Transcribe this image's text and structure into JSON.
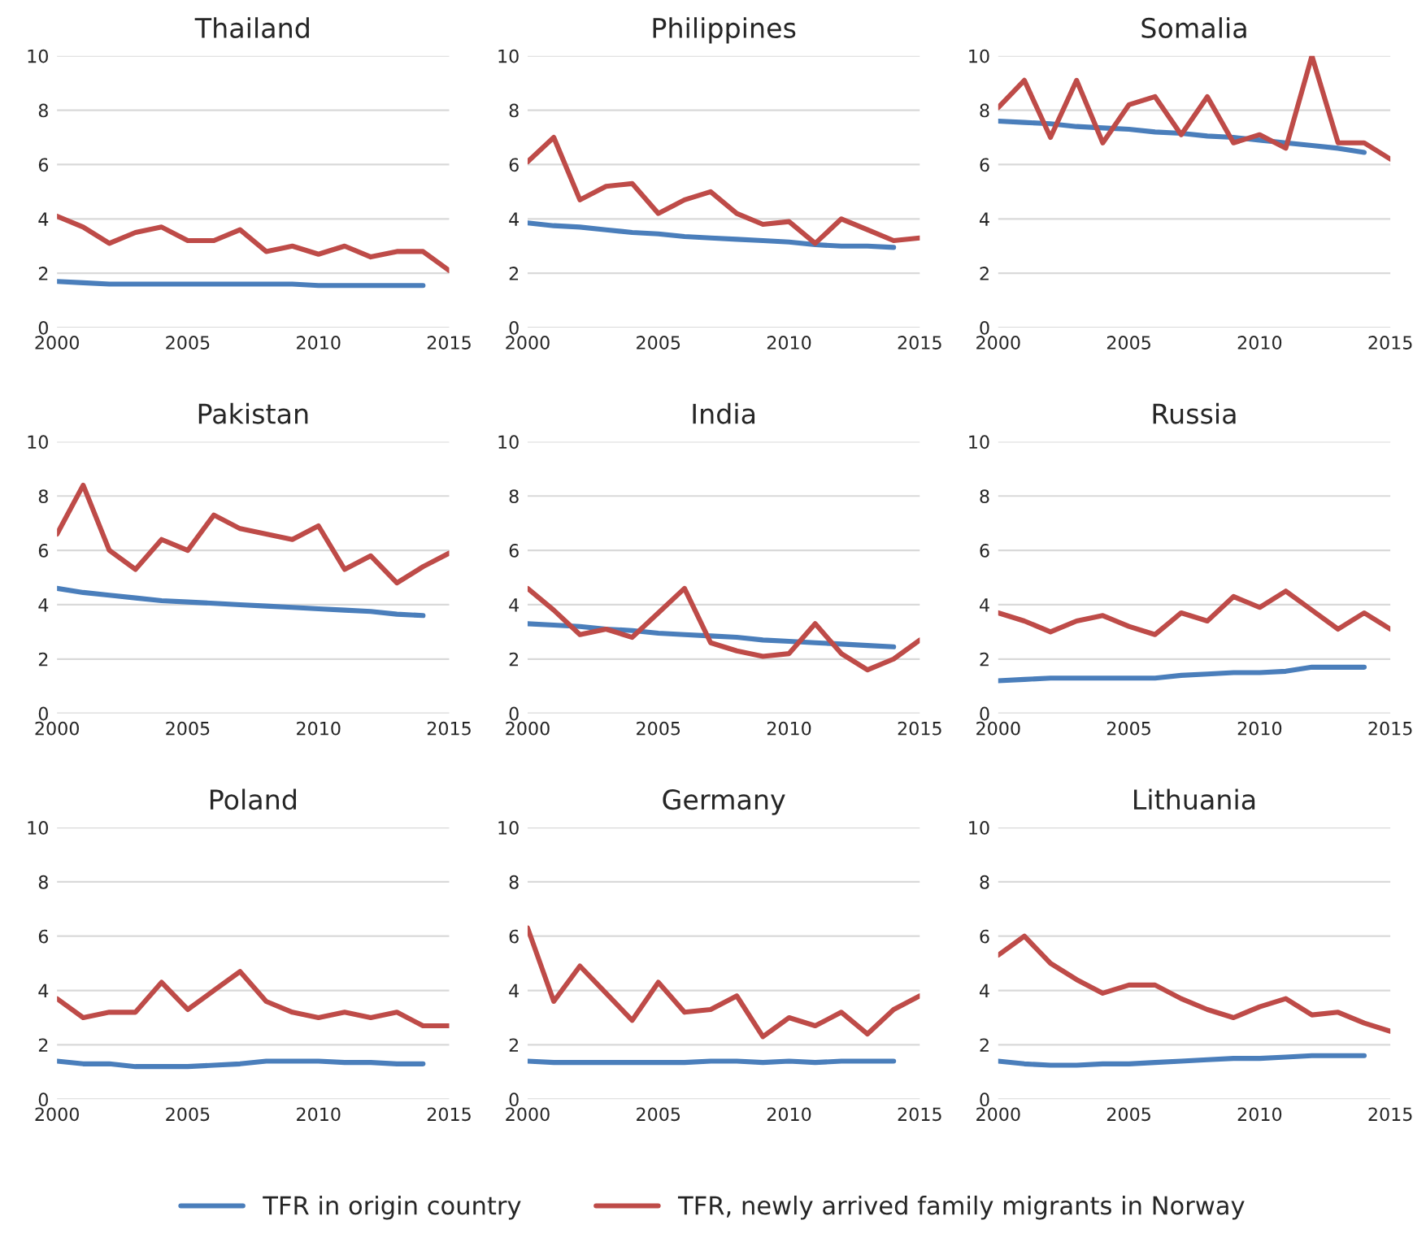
{
  "chart_data": [
    {
      "type": "line",
      "title": "Thailand",
      "x": [
        2000,
        2001,
        2002,
        2003,
        2004,
        2005,
        2006,
        2007,
        2008,
        2009,
        2010,
        2011,
        2012,
        2013,
        2014,
        2015
      ],
      "xlim": [
        2000,
        2015
      ],
      "xticks": [
        2000,
        2005,
        2010,
        2015
      ],
      "ylim": [
        0,
        10
      ],
      "yticks": [
        0,
        2,
        4,
        6,
        8,
        10
      ],
      "grid": "y",
      "legend": "bottom",
      "series": [
        {
          "name": "TFR in origin country",
          "color": "#4a7ebb",
          "values": [
            1.7,
            1.65,
            1.6,
            1.6,
            1.6,
            1.6,
            1.6,
            1.6,
            1.6,
            1.6,
            1.55,
            1.55,
            1.55,
            1.55,
            1.55,
            null
          ]
        },
        {
          "name": "TFR, newly arrived family migrants in Norway",
          "color": "#be4b48",
          "values": [
            4.1,
            3.7,
            3.1,
            3.5,
            3.7,
            3.2,
            3.2,
            3.6,
            2.8,
            3.0,
            2.7,
            3.0,
            2.6,
            2.8,
            2.8,
            2.1
          ]
        }
      ]
    },
    {
      "type": "line",
      "title": "Philippines",
      "x": [
        2000,
        2001,
        2002,
        2003,
        2004,
        2005,
        2006,
        2007,
        2008,
        2009,
        2010,
        2011,
        2012,
        2013,
        2014,
        2015
      ],
      "xlim": [
        2000,
        2015
      ],
      "xticks": [
        2000,
        2005,
        2010,
        2015
      ],
      "ylim": [
        0,
        10
      ],
      "yticks": [
        0,
        2,
        4,
        6,
        8,
        10
      ],
      "grid": "y",
      "series": [
        {
          "color": "#4a7ebb",
          "values": [
            3.85,
            3.75,
            3.7,
            3.6,
            3.5,
            3.45,
            3.35,
            3.3,
            3.25,
            3.2,
            3.15,
            3.05,
            3.0,
            3.0,
            2.95,
            null
          ]
        },
        {
          "color": "#be4b48",
          "values": [
            6.1,
            7.0,
            4.7,
            5.2,
            5.3,
            4.2,
            4.7,
            5.0,
            4.2,
            3.8,
            3.9,
            3.1,
            4.0,
            3.6,
            3.2,
            3.3
          ]
        }
      ]
    },
    {
      "type": "line",
      "title": "Somalia",
      "x": [
        2000,
        2001,
        2002,
        2003,
        2004,
        2005,
        2006,
        2007,
        2008,
        2009,
        2010,
        2011,
        2012,
        2013,
        2014,
        2015
      ],
      "xlim": [
        2000,
        2015
      ],
      "xticks": [
        2000,
        2005,
        2010,
        2015
      ],
      "ylim": [
        0,
        10
      ],
      "yticks": [
        0,
        2,
        4,
        6,
        8,
        10
      ],
      "grid": "y",
      "series": [
        {
          "color": "#4a7ebb",
          "values": [
            7.6,
            7.55,
            7.5,
            7.4,
            7.35,
            7.3,
            7.2,
            7.15,
            7.05,
            7.0,
            6.9,
            6.8,
            6.7,
            6.6,
            6.45,
            null
          ]
        },
        {
          "color": "#be4b48",
          "values": [
            8.1,
            9.1,
            7.0,
            9.1,
            6.8,
            8.2,
            8.5,
            7.1,
            8.5,
            6.8,
            7.1,
            6.6,
            10.0,
            6.8,
            6.8,
            6.2
          ]
        }
      ]
    },
    {
      "type": "line",
      "title": "Pakistan",
      "x": [
        2000,
        2001,
        2002,
        2003,
        2004,
        2005,
        2006,
        2007,
        2008,
        2009,
        2010,
        2011,
        2012,
        2013,
        2014,
        2015
      ],
      "xlim": [
        2000,
        2015
      ],
      "xticks": [
        2000,
        2005,
        2010,
        2015
      ],
      "ylim": [
        0,
        10
      ],
      "yticks": [
        0,
        2,
        4,
        6,
        8,
        10
      ],
      "grid": "y",
      "series": [
        {
          "color": "#4a7ebb",
          "values": [
            4.6,
            4.45,
            4.35,
            4.25,
            4.15,
            4.1,
            4.05,
            4.0,
            3.95,
            3.9,
            3.85,
            3.8,
            3.75,
            3.65,
            3.6,
            null
          ]
        },
        {
          "color": "#be4b48",
          "values": [
            6.6,
            8.4,
            6.0,
            5.3,
            6.4,
            6.0,
            7.3,
            6.8,
            6.6,
            6.4,
            6.9,
            5.3,
            5.8,
            4.8,
            5.4,
            5.9
          ]
        }
      ]
    },
    {
      "type": "line",
      "title": "India",
      "x": [
        2000,
        2001,
        2002,
        2003,
        2004,
        2005,
        2006,
        2007,
        2008,
        2009,
        2010,
        2011,
        2012,
        2013,
        2014,
        2015
      ],
      "xlim": [
        2000,
        2015
      ],
      "xticks": [
        2000,
        2005,
        2010,
        2015
      ],
      "ylim": [
        0,
        10
      ],
      "yticks": [
        0,
        2,
        4,
        6,
        8,
        10
      ],
      "grid": "y",
      "series": [
        {
          "color": "#4a7ebb",
          "values": [
            3.3,
            3.25,
            3.2,
            3.1,
            3.05,
            2.95,
            2.9,
            2.85,
            2.8,
            2.7,
            2.65,
            2.6,
            2.55,
            2.5,
            2.45,
            null
          ]
        },
        {
          "color": "#be4b48",
          "values": [
            4.6,
            3.8,
            2.9,
            3.1,
            2.8,
            3.7,
            4.6,
            2.6,
            2.3,
            2.1,
            2.2,
            3.3,
            2.2,
            1.6,
            2.0,
            2.7
          ]
        }
      ]
    },
    {
      "type": "line",
      "title": "Russia",
      "x": [
        2000,
        2001,
        2002,
        2003,
        2004,
        2005,
        2006,
        2007,
        2008,
        2009,
        2010,
        2011,
        2012,
        2013,
        2014,
        2015
      ],
      "xlim": [
        2000,
        2015
      ],
      "xticks": [
        2000,
        2005,
        2010,
        2015
      ],
      "ylim": [
        0,
        10
      ],
      "yticks": [
        0,
        2,
        4,
        6,
        8,
        10
      ],
      "grid": "y",
      "series": [
        {
          "color": "#4a7ebb",
          "values": [
            1.2,
            1.25,
            1.3,
            1.3,
            1.3,
            1.3,
            1.3,
            1.4,
            1.45,
            1.5,
            1.5,
            1.55,
            1.7,
            1.7,
            1.7,
            null
          ]
        },
        {
          "color": "#be4b48",
          "values": [
            3.7,
            3.4,
            3.0,
            3.4,
            3.6,
            3.2,
            2.9,
            3.7,
            3.4,
            4.3,
            3.9,
            4.5,
            3.8,
            3.1,
            3.7,
            3.1
          ]
        }
      ]
    },
    {
      "type": "line",
      "title": "Poland",
      "x": [
        2000,
        2001,
        2002,
        2003,
        2004,
        2005,
        2006,
        2007,
        2008,
        2009,
        2010,
        2011,
        2012,
        2013,
        2014,
        2015
      ],
      "xlim": [
        2000,
        2015
      ],
      "xticks": [
        2000,
        2005,
        2010,
        2015
      ],
      "ylim": [
        0,
        10
      ],
      "yticks": [
        0,
        2,
        4,
        6,
        8,
        10
      ],
      "grid": "y",
      "series": [
        {
          "color": "#4a7ebb",
          "values": [
            1.4,
            1.3,
            1.3,
            1.2,
            1.2,
            1.2,
            1.25,
            1.3,
            1.4,
            1.4,
            1.4,
            1.35,
            1.35,
            1.3,
            1.3,
            null
          ]
        },
        {
          "color": "#be4b48",
          "values": [
            3.7,
            3.0,
            3.2,
            3.2,
            4.3,
            3.3,
            4.0,
            4.7,
            3.6,
            3.2,
            3.0,
            3.2,
            3.0,
            3.2,
            2.7,
            2.7
          ]
        }
      ]
    },
    {
      "type": "line",
      "title": "Germany",
      "x": [
        2000,
        2001,
        2002,
        2003,
        2004,
        2005,
        2006,
        2007,
        2008,
        2009,
        2010,
        2011,
        2012,
        2013,
        2014,
        2015
      ],
      "xlim": [
        2000,
        2015
      ],
      "xticks": [
        2000,
        2005,
        2010,
        2015
      ],
      "ylim": [
        0,
        10
      ],
      "yticks": [
        0,
        2,
        4,
        6,
        8,
        10
      ],
      "grid": "y",
      "series": [
        {
          "color": "#4a7ebb",
          "values": [
            1.4,
            1.35,
            1.35,
            1.35,
            1.35,
            1.35,
            1.35,
            1.4,
            1.4,
            1.35,
            1.4,
            1.35,
            1.4,
            1.4,
            1.4,
            null
          ]
        },
        {
          "color": "#be4b48",
          "values": [
            6.3,
            3.6,
            4.9,
            3.9,
            2.9,
            4.3,
            3.2,
            3.3,
            3.8,
            2.3,
            3.0,
            2.7,
            3.2,
            2.4,
            3.3,
            3.8
          ]
        }
      ]
    },
    {
      "type": "line",
      "title": "Lithuania",
      "x": [
        2000,
        2001,
        2002,
        2003,
        2004,
        2005,
        2006,
        2007,
        2008,
        2009,
        2010,
        2011,
        2012,
        2013,
        2014,
        2015
      ],
      "xlim": [
        2000,
        2015
      ],
      "xticks": [
        2000,
        2005,
        2010,
        2015
      ],
      "ylim": [
        0,
        10
      ],
      "yticks": [
        0,
        2,
        4,
        6,
        8,
        10
      ],
      "grid": "y",
      "series": [
        {
          "color": "#4a7ebb",
          "values": [
            1.4,
            1.3,
            1.25,
            1.25,
            1.3,
            1.3,
            1.35,
            1.4,
            1.45,
            1.5,
            1.5,
            1.55,
            1.6,
            1.6,
            1.6,
            null
          ]
        },
        {
          "color": "#be4b48",
          "values": [
            5.3,
            6.0,
            5.0,
            4.4,
            3.9,
            4.2,
            4.2,
            3.7,
            3.3,
            3.0,
            3.4,
            3.7,
            3.1,
            3.2,
            2.8,
            2.5
          ]
        }
      ]
    }
  ]
}
